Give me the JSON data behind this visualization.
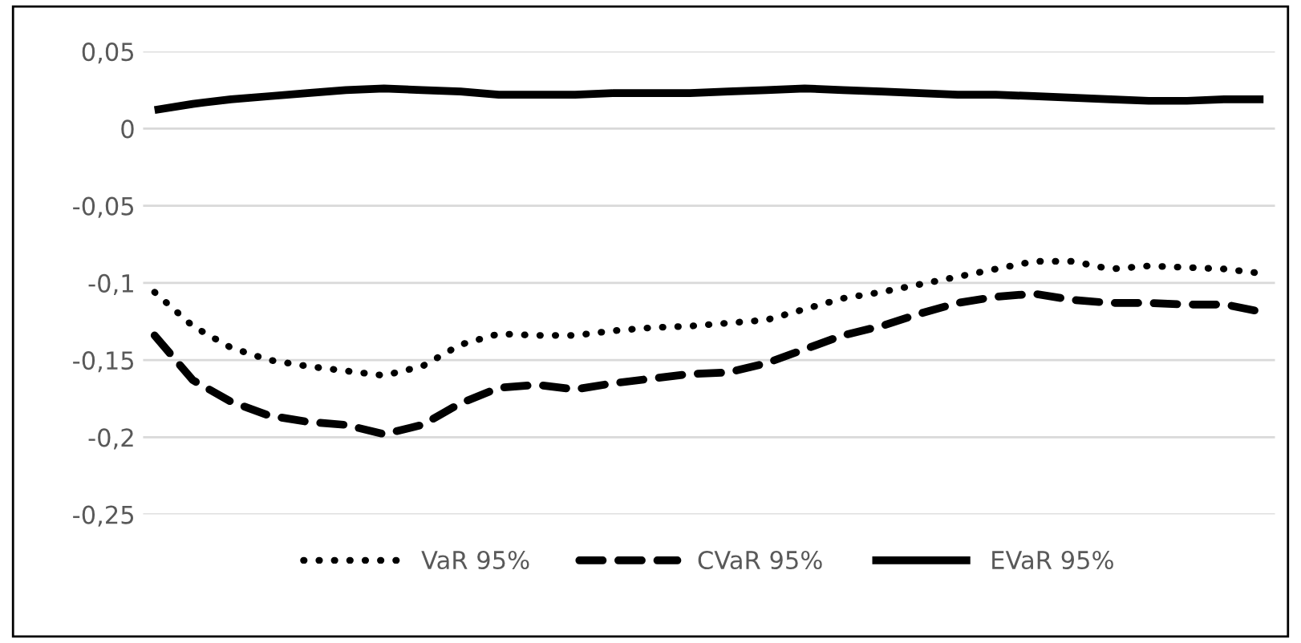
{
  "chart_data": {
    "type": "line",
    "categories": [
      null,
      null,
      null,
      null,
      null,
      null,
      null,
      null,
      null,
      null,
      null,
      null,
      null,
      null,
      null,
      null,
      null,
      null,
      null,
      null,
      null,
      null,
      null,
      null,
      null,
      null,
      null,
      null,
      null,
      null
    ],
    "series": [
      {
        "name": "VaR 95%",
        "color": "#000000",
        "line_style": "dotted",
        "values": [
          -0.106,
          -0.128,
          -0.142,
          -0.15,
          -0.154,
          -0.157,
          -0.16,
          -0.154,
          -0.14,
          -0.133,
          -0.134,
          -0.134,
          -0.131,
          -0.129,
          -0.128,
          -0.126,
          -0.124,
          -0.117,
          -0.11,
          -0.106,
          -0.101,
          -0.096,
          -0.091,
          -0.086,
          -0.086,
          -0.091,
          -0.089,
          -0.09,
          -0.091,
          -0.094
        ]
      },
      {
        "name": "CVaR 95%",
        "color": "#000000",
        "line_style": "dashed",
        "values": [
          -0.134,
          -0.163,
          -0.177,
          -0.186,
          -0.19,
          -0.192,
          -0.198,
          -0.192,
          -0.178,
          -0.168,
          -0.166,
          -0.169,
          -0.165,
          -0.162,
          -0.159,
          -0.158,
          -0.152,
          -0.143,
          -0.134,
          -0.128,
          -0.12,
          -0.113,
          -0.109,
          -0.107,
          -0.111,
          -0.113,
          -0.113,
          -0.114,
          -0.114,
          -0.119
        ]
      },
      {
        "name": "EVaR 95%",
        "color": "#000000",
        "line_style": "solid",
        "values": [
          0.012,
          0.016,
          0.019,
          0.021,
          0.023,
          0.025,
          0.026,
          0.025,
          0.024,
          0.022,
          0.022,
          0.022,
          0.023,
          0.023,
          0.023,
          0.024,
          0.025,
          0.026,
          0.025,
          0.024,
          0.023,
          0.022,
          0.022,
          0.021,
          0.02,
          0.019,
          0.018,
          0.018,
          0.019,
          0.019
        ]
      }
    ],
    "ylim": [
      -0.25,
      0.05
    ],
    "yticks": [
      {
        "value": 0.05,
        "label": "0,05"
      },
      {
        "value": 0,
        "label": "0"
      },
      {
        "value": -0.05,
        "label": "-0,05"
      },
      {
        "value": -0.1,
        "label": "-0,1"
      },
      {
        "value": -0.15,
        "label": "-0,15"
      },
      {
        "value": -0.2,
        "label": "-0,2"
      },
      {
        "value": -0.25,
        "label": "-0,25"
      }
    ],
    "grid": "y",
    "legend": "bottom"
  }
}
